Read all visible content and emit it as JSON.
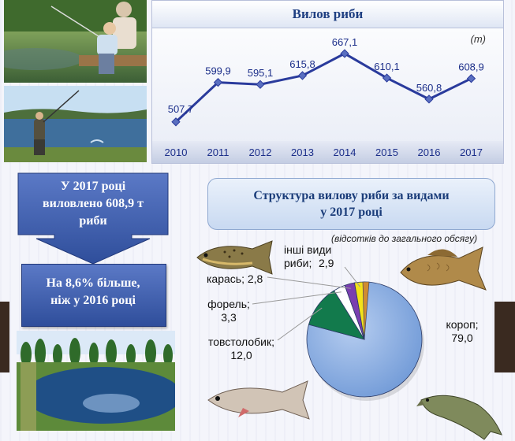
{
  "line_chart": {
    "title": "Вилов риби",
    "unit": "(т)"
  },
  "callout": {
    "top_text": [
      "У 2017 році",
      "виловлено 608,9 т",
      "риби"
    ],
    "bottom_text": [
      "На 8,6% більше,",
      "ніж  у 2016 році"
    ]
  },
  "pie_chart": {
    "title_line1": "Структура вилову риби за видами",
    "title_line2": "у 2017 році",
    "subtitle": "(відсотків до загального обсягу)"
  },
  "colors": {
    "line": "#2a3b9c",
    "pie_carp": "#7ea6e0",
    "pie_silver_carp": "#127a4c",
    "pie_trout": "#ffffff",
    "pie_crucian": "#7a3fb0",
    "pie_other": "#f3e21a",
    "pie_extra": "#d08c30",
    "callout": "#3f5fb0"
  },
  "chart_data": [
    {
      "type": "line",
      "title": "Вилов риби",
      "ylabel": "(т)",
      "x": [
        "2010",
        "2011",
        "2012",
        "2013",
        "2014",
        "2015",
        "2016",
        "2017"
      ],
      "values": [
        507.7,
        599.9,
        595.1,
        615.8,
        667.1,
        610.1,
        560.8,
        608.9
      ],
      "value_labels": [
        "507,7",
        "599,9",
        "595,1",
        "615,8",
        "667,1",
        "610,1",
        "560,8",
        "608,9"
      ],
      "ylim": [
        500,
        680
      ],
      "grid": false
    },
    {
      "type": "pie",
      "title": "Структура вилову риби за видами у 2017 році",
      "subtitle": "(відсотків до загального обсягу)",
      "slices": [
        {
          "label": "короп;",
          "value_label": "79,0",
          "value": 79.0,
          "color": "#7ea6e0"
        },
        {
          "label": "товстолобик;",
          "value_label": "12,0",
          "value": 12.0,
          "color": "#127a4c"
        },
        {
          "label": "форель;",
          "value_label": "3,3",
          "value": 3.3,
          "color": "#ffffff"
        },
        {
          "label": "карась;",
          "value_label": "2,8",
          "value": 2.8,
          "color": "#7a3fb0"
        },
        {
          "label": "інші види риби;",
          "value_label": "2,9",
          "value": 2.9,
          "color": "#f3e21a"
        }
      ]
    }
  ]
}
